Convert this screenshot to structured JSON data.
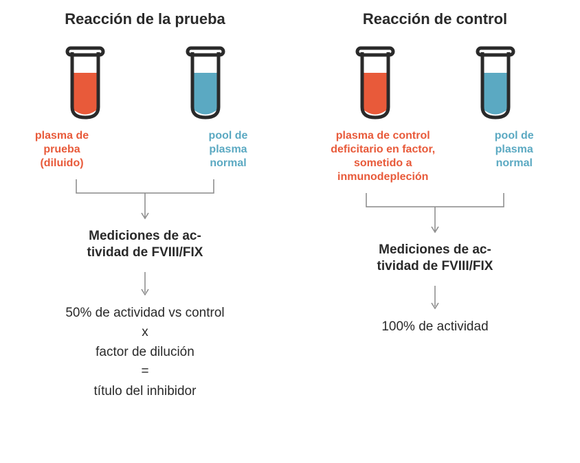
{
  "colors": {
    "red": "#e85a3a",
    "blue": "#5ba9c2",
    "dark": "#2a2a2a",
    "gray": "#888888",
    "tube_outline": "#2a2a2a"
  },
  "left": {
    "title": "Reacción de la prueba",
    "tube1_label": "plasma de\nprueba\n(diluido)",
    "tube2_label": "pool de\nplasma\nnormal",
    "measurement": "Mediciones de ac-\ntividad de FVIII/FIX",
    "result_line1": "50% de actividad vs control",
    "result_line2": "x",
    "result_line3": "factor de dilución",
    "result_line4": "=",
    "result_line5": "título del inhibidor"
  },
  "right": {
    "title": "Reacción de control",
    "tube1_label": "plasma de control\ndeficitario en factor,\nsometido a\ninmunodepleción",
    "tube2_label": "pool de\nplasma\nnormal",
    "measurement": "Mediciones de ac-\ntividad de FVIII/FIX",
    "result": "100% de actividad"
  },
  "tube_style": {
    "width": 48,
    "height": 105,
    "outline_width": 5,
    "rim_width": 60,
    "fill_level": 0.65
  }
}
